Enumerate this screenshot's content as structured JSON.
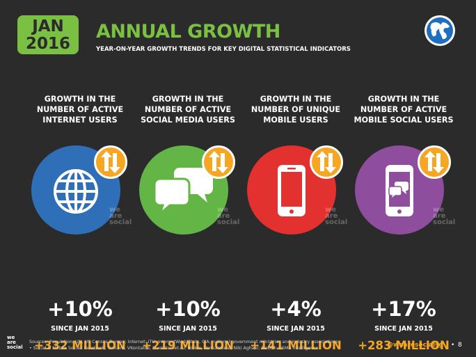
{
  "header": {
    "date_line1": "JAN",
    "date_line2": "2016",
    "title": "ANNUAL GROWTH",
    "subtitle": "YEAR-ON-YEAR GROWTH TRENDS FOR KEY DIGITAL STATISTICAL INDICATORS",
    "globe_icon": "globe-icon"
  },
  "colors": {
    "background": "#2b2b2b",
    "accent_green": "#7ac143",
    "accent_orange": "#f5a623",
    "blue": "#2f6fb8",
    "green": "#63b646",
    "red": "#e2312e",
    "purple": "#8f4d9d"
  },
  "watermark": {
    "line1": "we",
    "line2": "are",
    "line3": "social"
  },
  "indicators": [
    {
      "heading": [
        "GROWTH IN THE",
        "NUMBER OF ACTIVE",
        "INTERNET USERS"
      ],
      "icon": "globe-grid-icon",
      "color": "#2f6fb8",
      "percent": "+10%",
      "since": "SINCE JAN 2015",
      "absolute": "+332 MILLION"
    },
    {
      "heading": [
        "GROWTH IN THE",
        "NUMBER OF ACTIVE",
        "SOCIAL MEDIA USERS"
      ],
      "icon": "chat-bubbles-icon",
      "color": "#63b646",
      "percent": "+10%",
      "since": "SINCE JAN 2015",
      "absolute": "+219 MILLION"
    },
    {
      "heading": [
        "GROWTH IN THE",
        "NUMBER OF UNIQUE",
        "MOBILE USERS"
      ],
      "icon": "mobile-phone-icon",
      "color": "#e2312e",
      "percent": "+4%",
      "since": "SINCE JAN 2015",
      "absolute": "+141 MILLION"
    },
    {
      "heading": [
        "GROWTH IN THE",
        "NUMBER OF ACTIVE",
        "MOBILE SOCIAL USERS"
      ],
      "icon": "mobile-chat-icon",
      "color": "#8f4d9d",
      "percent": "+17%",
      "since": "SINCE JAN 2015",
      "absolute": "+283 MILLION"
    }
  ],
  "footer": {
    "logo_line1": "we",
    "logo_line2": "are",
    "logo_line3": "social",
    "sources_line1": "Sources: Population: UN, US Census Bureau; Internet: ITU, InternetWorldStats, CIA, national government ministries and industry associations;",
    "sources_line2": "• Social & Mobile Social: Facebook, Tencent, VKontakte, LiveInternet.ru, Nikkei, VentureBeat, Niki Aghaei; Mobile: GSMA Intelligence.",
    "handle": "@wearesocialsg",
    "separator": "•",
    "page": "8"
  }
}
